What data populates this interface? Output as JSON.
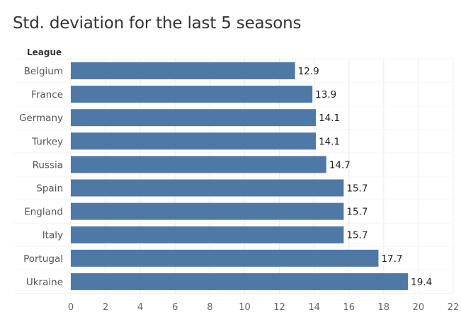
{
  "chart_data": {
    "type": "bar",
    "orientation": "horizontal",
    "title": "Std. deviation for the last 5 seasons",
    "category_header": "League",
    "categories": [
      "Belgium",
      "France",
      "Germany",
      "Turkey",
      "Russia",
      "Spain",
      "England",
      "Italy",
      "Portugal",
      "Ukraine"
    ],
    "values": [
      12.9,
      13.9,
      14.1,
      14.1,
      14.7,
      15.7,
      15.7,
      15.7,
      17.7,
      19.4
    ],
    "value_labels": [
      "12.9",
      "13.9",
      "14.1",
      "14.1",
      "14.7",
      "15.7",
      "15.7",
      "15.7",
      "17.7",
      "19.4"
    ],
    "xlim": [
      0,
      22
    ],
    "x_ticks": [
      0,
      2,
      4,
      6,
      8,
      10,
      12,
      14,
      16,
      18,
      20,
      22
    ],
    "grid": true,
    "bar_color": "#4e79a7"
  }
}
